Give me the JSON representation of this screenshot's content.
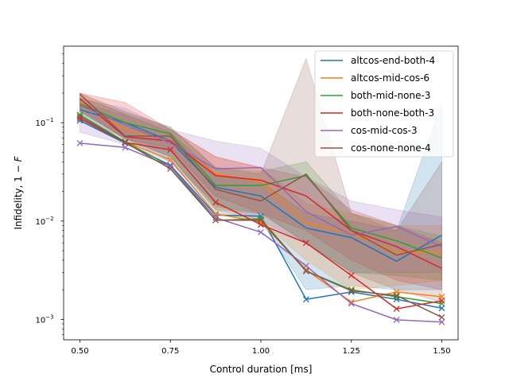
{
  "chart_data": {
    "type": "line",
    "title": "",
    "xlabel": "Control duration [ms]",
    "ylabel": "Infidelity, 1 − F",
    "ylabel_main": "Infidelity, 1 − ",
    "ylabel_var": "F",
    "xlim": [
      0.455,
      1.545
    ],
    "ylim": [
      0.00062,
      0.6
    ],
    "yscale": "log",
    "grid": false,
    "legend_position": "top-right",
    "x": [
      0.5,
      0.625,
      0.75,
      0.875,
      1.0,
      1.125,
      1.25,
      1.375,
      1.5
    ],
    "x_tick_labels": [
      "0.50",
      "0.75",
      "1.00",
      "1.25",
      "1.50"
    ],
    "x_tick_values": [
      0.5,
      0.75,
      1.0,
      1.25,
      1.5
    ],
    "y_major_ticks": [
      {
        "value": 0.001,
        "base": "10",
        "exp": "−3"
      },
      {
        "value": 0.01,
        "base": "10",
        "exp": "−2"
      },
      {
        "value": 0.1,
        "base": "10",
        "exp": "−1"
      }
    ],
    "series": [
      {
        "name": "altcos-end-both-4",
        "color": "#1f77b4",
        "mean": [
          0.135,
          0.1,
          0.065,
          0.022,
          0.018,
          0.0085,
          0.0068,
          0.0039,
          0.0072
        ],
        "min": [
          0.105,
          0.062,
          0.037,
          0.0115,
          0.0112,
          0.0016,
          0.0019,
          0.0016,
          0.0013
        ],
        "band_lo": [
          0.11,
          0.07,
          0.04,
          0.012,
          0.01,
          0.002,
          0.0022,
          0.002,
          0.002
        ],
        "band_hi": [
          0.16,
          0.12,
          0.08,
          0.03,
          0.025,
          0.012,
          0.01,
          0.008,
          0.16
        ]
      },
      {
        "name": "altcos-mid-cos-6",
        "color": "#ff7f0e",
        "mean": [
          0.16,
          0.085,
          0.065,
          0.03,
          0.025,
          0.0095,
          0.0075,
          0.0048,
          0.0048
        ],
        "min": [
          0.12,
          0.064,
          0.042,
          0.0118,
          0.0098,
          0.0032,
          0.0015,
          0.0019,
          0.0017
        ],
        "band_lo": [
          0.13,
          0.07,
          0.045,
          0.013,
          0.01,
          0.004,
          0.002,
          0.0022,
          0.0025
        ],
        "band_hi": [
          0.2,
          0.12,
          0.085,
          0.045,
          0.035,
          0.015,
          0.012,
          0.009,
          0.009
        ]
      },
      {
        "name": "both-mid-none-3",
        "color": "#2ca02c",
        "mean": [
          0.155,
          0.1,
          0.077,
          0.023,
          0.023,
          0.029,
          0.0085,
          0.0063,
          0.0042
        ],
        "min": [
          0.12,
          0.064,
          0.036,
          0.0102,
          0.0105,
          0.0031,
          0.002,
          0.0017,
          0.00145
        ],
        "band_lo": [
          0.13,
          0.07,
          0.045,
          0.014,
          0.012,
          0.006,
          0.003,
          0.0028,
          0.0025
        ],
        "band_hi": [
          0.18,
          0.125,
          0.09,
          0.035,
          0.032,
          0.04,
          0.012,
          0.009,
          0.007
        ]
      },
      {
        "name": "both-none-both-3",
        "color": "#d62728",
        "mean": [
          0.175,
          0.072,
          0.065,
          0.029,
          0.026,
          0.018,
          0.008,
          0.0055,
          0.0033
        ],
        "min": [
          0.11,
          0.063,
          0.053,
          0.0155,
          0.0092,
          0.006,
          0.0028,
          0.00128,
          0.00155
        ],
        "band_lo": [
          0.13,
          0.068,
          0.055,
          0.018,
          0.012,
          0.008,
          0.004,
          0.0025,
          0.002
        ],
        "band_hi": [
          0.2,
          0.16,
          0.085,
          0.045,
          0.035,
          0.028,
          0.013,
          0.009,
          0.006
        ]
      },
      {
        "name": "cos-mid-cos-3",
        "color": "#9467bd",
        "mean": [
          0.15,
          0.095,
          0.062,
          0.034,
          0.035,
          0.0125,
          0.0072,
          0.0088,
          0.0055
        ],
        "min": [
          0.062,
          0.056,
          0.036,
          0.0108,
          0.0077,
          0.0035,
          0.00145,
          0.00099,
          0.00094
        ],
        "band_lo": [
          0.08,
          0.06,
          0.04,
          0.015,
          0.01,
          0.006,
          0.003,
          0.003,
          0.003
        ],
        "band_hi": [
          0.175,
          0.14,
          0.085,
          0.065,
          0.055,
          0.028,
          0.016,
          0.013,
          0.011
        ]
      },
      {
        "name": "cos-none-none-4",
        "color": "#8c564b",
        "mean": [
          0.195,
          0.073,
          0.073,
          0.021,
          0.016,
          0.03,
          0.008,
          0.0045,
          0.0058
        ],
        "min": [
          0.115,
          0.063,
          0.034,
          0.0102,
          0.0102,
          0.0031,
          0.00195,
          0.00175,
          0.00105
        ],
        "band_lo": [
          0.14,
          0.067,
          0.045,
          0.013,
          0.012,
          0.006,
          0.003,
          0.002,
          0.0015
        ],
        "band_hi": [
          0.2,
          0.13,
          0.09,
          0.035,
          0.03,
          0.45,
          0.012,
          0.008,
          0.04
        ]
      }
    ]
  }
}
